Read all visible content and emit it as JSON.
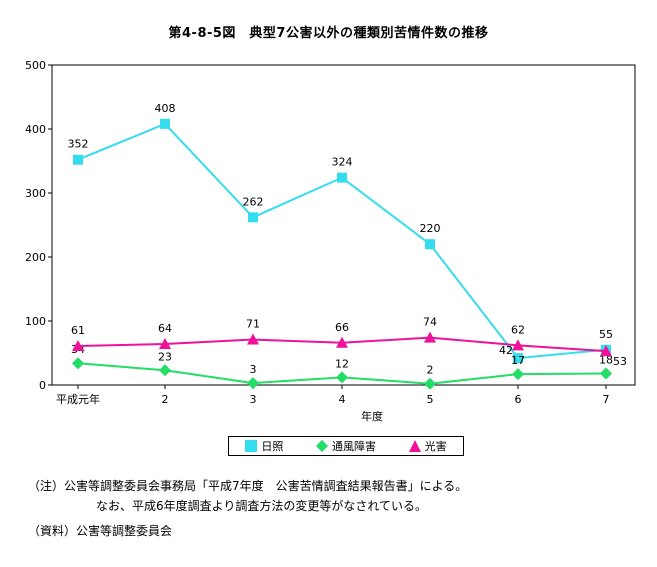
{
  "chart_data": {
    "type": "line",
    "title": "第4-8-5図　典型7公害以外の種類別苦情件数の推移",
    "xlabel": "年度",
    "ylabel": "",
    "categories": [
      "平成元年",
      "2",
      "3",
      "4",
      "5",
      "6",
      "7"
    ],
    "ylim": [
      0,
      500
    ],
    "yticks": [
      0,
      100,
      200,
      300,
      400,
      500
    ],
    "legend_position": "bottom",
    "series": [
      {
        "name": "日照",
        "color": "#33ddee",
        "marker": "square",
        "values": [
          352,
          408,
          262,
          324,
          220,
          42,
          55
        ]
      },
      {
        "name": "通風障害",
        "color": "#22dd66",
        "marker": "diamond",
        "values": [
          34,
          23,
          3,
          12,
          2,
          17,
          18
        ]
      },
      {
        "name": "光害",
        "color": "#ee1199",
        "marker": "triangle",
        "values": [
          61,
          64,
          71,
          66,
          74,
          62,
          53
        ]
      }
    ]
  },
  "notes": {
    "note1": "（注）公害等調整委員会事務局「平成7年度　公害苦情調査結果報告書」による。",
    "note2": "なお、平成6年度調査より調査方法の変更等がなされている。",
    "note3": "（資料）公害等調整委員会"
  }
}
